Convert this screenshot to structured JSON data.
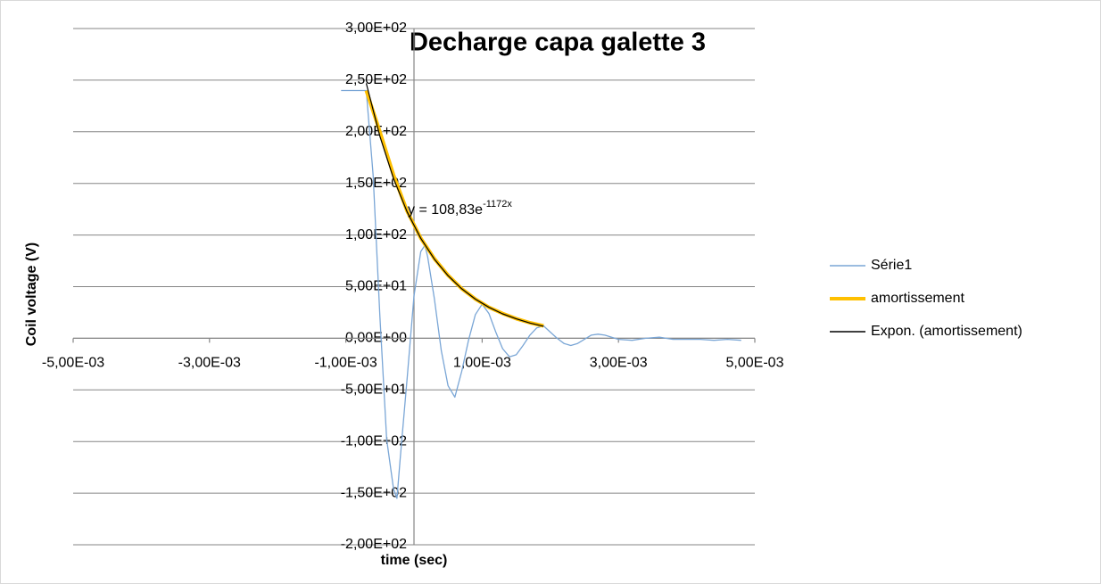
{
  "chart_data": {
    "type": "line",
    "title": "Decharge capa galette 3",
    "x_label": "time (sec)",
    "y_label": "Coil voltage (V)",
    "annotation": {
      "text": "y = 108,83e",
      "superscript": "-1172x"
    },
    "xlim": [
      -0.005,
      0.005
    ],
    "ylim": [
      -200,
      300
    ],
    "xticks": [
      {
        "value": -0.005,
        "label": "-5,00E-03"
      },
      {
        "value": -0.003,
        "label": "-3,00E-03"
      },
      {
        "value": -0.001,
        "label": "-1,00E-03"
      },
      {
        "value": 0.001,
        "label": "1,00E-03"
      },
      {
        "value": 0.003,
        "label": "3,00E-03"
      },
      {
        "value": 0.005,
        "label": "5,00E-03"
      }
    ],
    "yticks": [
      {
        "value": 300,
        "label": "3,00E+02"
      },
      {
        "value": 250,
        "label": "2,50E+02"
      },
      {
        "value": 200,
        "label": "2,00E+02"
      },
      {
        "value": 150,
        "label": "1,50E+02"
      },
      {
        "value": 100,
        "label": "1,00E+02"
      },
      {
        "value": 50,
        "label": "5,00E+01"
      },
      {
        "value": 0,
        "label": "0,00E+00"
      },
      {
        "value": -50,
        "label": "-5,00E+01"
      },
      {
        "value": -100,
        "label": "-1,00E+02"
      },
      {
        "value": -150,
        "label": "-1,50E+02"
      },
      {
        "value": -200,
        "label": "-2,00E+02"
      }
    ],
    "grid": true,
    "legend": "right",
    "series": [
      {
        "name": "Série1",
        "color": "#7aa6d6",
        "width": 1.3,
        "x": [
          -0.00107,
          -0.0007,
          -0.0006,
          -0.0005,
          -0.0004,
          -0.0003,
          -0.00025,
          -0.0002,
          -0.0001,
          0,
          0.0001,
          0.00016,
          0.0002,
          0.0003,
          0.0004,
          0.0005,
          0.0006,
          0.0007,
          0.0008,
          0.0009,
          0.001,
          0.0011,
          0.0012,
          0.0013,
          0.0014,
          0.0015,
          0.0016,
          0.0017,
          0.0018,
          0.0019,
          0.002,
          0.0021,
          0.0022,
          0.0023,
          0.0024,
          0.0025,
          0.0026,
          0.0027,
          0.0028,
          0.0029,
          0.003,
          0.0032,
          0.0034,
          0.0036,
          0.0038,
          0.004,
          0.0042,
          0.0044,
          0.0046,
          0.0048
        ],
        "values": [
          240,
          240,
          158,
          21,
          -98,
          -146,
          -155,
          -115,
          -38,
          41,
          84,
          90,
          79,
          38,
          -12,
          -46,
          -57,
          -32,
          -2,
          23,
          33,
          24,
          6,
          -10,
          -18,
          -16,
          -7,
          3,
          10,
          12,
          6,
          0,
          -5,
          -7,
          -5,
          -1,
          3,
          4,
          3,
          1,
          -1,
          -2,
          0,
          1,
          -1,
          -1,
          -1,
          -2,
          -1,
          -2
        ]
      },
      {
        "name": "amortissement",
        "color": "#ffc000",
        "width": 4,
        "x": [
          -0.0007,
          -0.0005,
          -0.0003,
          -0.0001,
          0.0001,
          0.0003,
          0.0005,
          0.0007,
          0.0009,
          0.0011,
          0.0013,
          0.0015,
          0.0017,
          0.0019
        ],
        "values": [
          240,
          200,
          158,
          123,
          97,
          77,
          61,
          48,
          38,
          30,
          24,
          19,
          15,
          12
        ]
      },
      {
        "name": "Expon. (amortissement)",
        "color": "#000000",
        "width": 1.2,
        "x": [
          -0.0007,
          -0.0005,
          -0.0003,
          -0.0001,
          0.0001,
          0.0003,
          0.0005,
          0.0007,
          0.0009,
          0.0011,
          0.0013,
          0.0015,
          0.0017,
          0.0019
        ],
        "values": [
          247,
          195.6,
          154.7,
          122.3,
          96.8,
          76.6,
          60.6,
          47.9,
          37.9,
          30,
          23.7,
          18.8,
          14.8,
          11.7
        ]
      }
    ]
  }
}
